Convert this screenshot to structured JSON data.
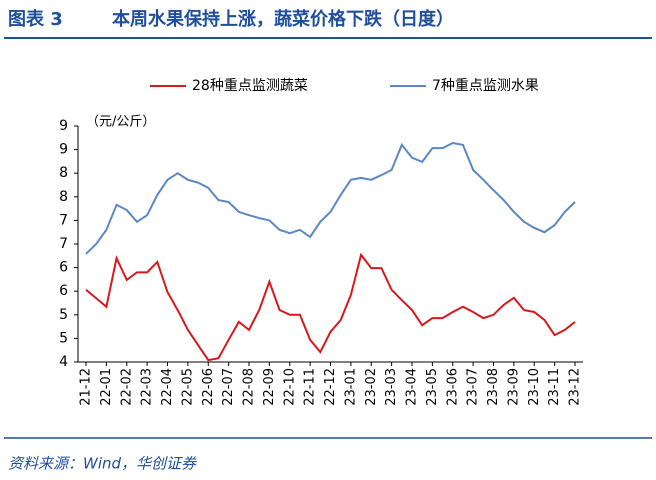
{
  "chart_data": {
    "type": "line",
    "figure_label": "图表 3",
    "title": "本周水果保持上涨，蔬菜价格下跌（日度）",
    "unit_label": "（元/公斤）",
    "source": "资料来源：Wind，华创证券",
    "categories": [
      "21-12",
      null,
      "22-01",
      null,
      "22-02",
      null,
      "22-03",
      null,
      "22-04",
      null,
      "22-05",
      null,
      "22-06",
      null,
      "22-07",
      null,
      "22-08",
      null,
      "22-09",
      null,
      "22-10",
      null,
      "22-11",
      null,
      "22-12",
      null,
      "23-01",
      null,
      "23-02",
      null,
      "23-03",
      null,
      "23-04",
      null,
      "23-05",
      null,
      "23-06",
      null,
      "23-07",
      null,
      "23-08",
      null,
      "23-09",
      null,
      "23-10",
      null,
      "23-11",
      null,
      "23-12"
    ],
    "series": [
      {
        "name": "28种重点监测蔬菜",
        "color": "#d7191c",
        "values": [
          5.53,
          5.35,
          5.17,
          6.2,
          5.74,
          5.9,
          5.9,
          6.12,
          5.48,
          5.1,
          4.68,
          4.36,
          4.04,
          4.08,
          4.47,
          4.85,
          4.68,
          5.1,
          5.7,
          5.1,
          5.0,
          5.0,
          4.47,
          4.21,
          4.64,
          4.89,
          5.42,
          6.27,
          5.99,
          5.99,
          5.53,
          5.31,
          5.1,
          4.78,
          4.93,
          4.93,
          5.06,
          5.17,
          5.06,
          4.93,
          5.0,
          5.21,
          5.36,
          5.1,
          5.06,
          4.89,
          4.57,
          4.68,
          4.85
        ]
      },
      {
        "name": "7种重点监测水果",
        "color": "#5b87c5",
        "values": [
          6.29,
          6.5,
          6.8,
          7.33,
          7.22,
          6.97,
          7.11,
          7.54,
          7.86,
          8.0,
          7.86,
          7.8,
          7.69,
          7.43,
          7.39,
          7.18,
          7.11,
          7.05,
          7.0,
          6.8,
          6.73,
          6.8,
          6.65,
          6.97,
          7.18,
          7.54,
          7.86,
          7.9,
          7.86,
          7.96,
          8.07,
          8.6,
          8.33,
          8.24,
          8.53,
          8.53,
          8.64,
          8.6,
          8.07,
          7.86,
          7.64,
          7.43,
          7.18,
          6.97,
          6.84,
          6.75,
          6.9,
          7.18,
          7.39
        ]
      }
    ],
    "ylim": [
      4,
      9
    ],
    "yticks": [
      {
        "value": 4,
        "label": "4"
      },
      {
        "value": 4.5,
        "label": "5"
      },
      {
        "value": 5,
        "label": "5"
      },
      {
        "value": 5.5,
        "label": "6"
      },
      {
        "value": 6,
        "label": "6"
      },
      {
        "value": 6.5,
        "label": "7"
      },
      {
        "value": 7,
        "label": "7"
      },
      {
        "value": 7.5,
        "label": "8"
      },
      {
        "value": 8,
        "label": "8"
      },
      {
        "value": 8.5,
        "label": "9"
      },
      {
        "value": 9,
        "label": "9"
      }
    ],
    "legend": "top"
  }
}
